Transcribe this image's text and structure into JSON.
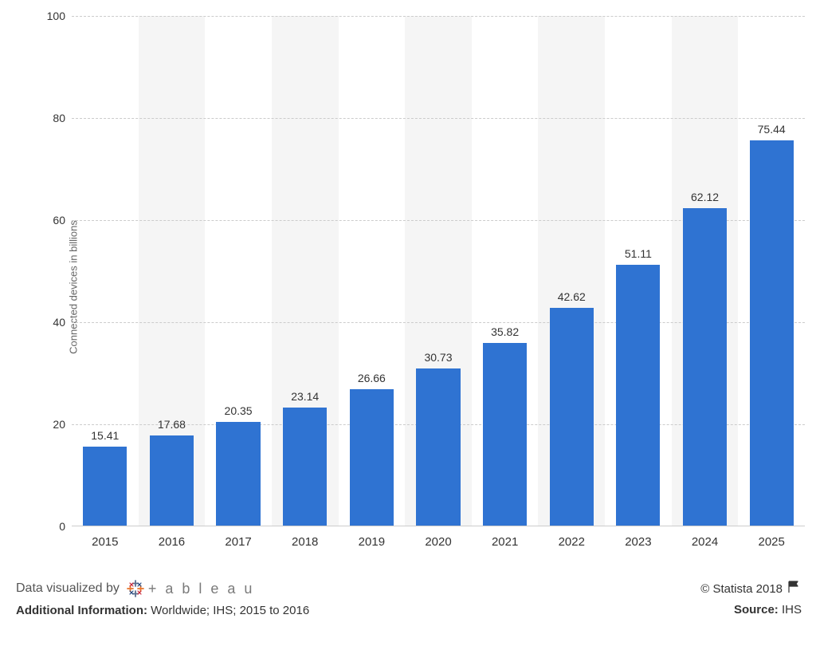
{
  "chart": {
    "type": "bar",
    "y_axis_label": "Connected devices in billions",
    "ylim": [
      0,
      100
    ],
    "ytick_step": 20,
    "yticks": [
      0,
      20,
      40,
      60,
      80,
      100
    ],
    "categories": [
      "2015",
      "2016",
      "2017",
      "2018",
      "2019",
      "2020",
      "2021",
      "2022",
      "2023",
      "2024",
      "2025"
    ],
    "values": [
      15.41,
      17.68,
      20.35,
      23.14,
      26.66,
      30.73,
      35.82,
      42.62,
      51.11,
      62.12,
      75.44
    ],
    "bar_color": "#2f73d2",
    "background_color": "#ffffff",
    "grid_color": "#cccccc",
    "band_color": "#f5f5f5",
    "bar_width_ratio": 0.66,
    "label_fontsize": 14,
    "axis_fontsize": 14,
    "xaxis_fontsize": 15
  },
  "footer": {
    "viz_by_text": "Data visualized by",
    "tableau_name": "+ a b l e a u",
    "copyright": "© Statista 2018",
    "additional_label": "Additional Information:",
    "additional_text": "Worldwide; IHS; 2015 to 2016",
    "source_label": "Source:",
    "source_text": "IHS"
  }
}
